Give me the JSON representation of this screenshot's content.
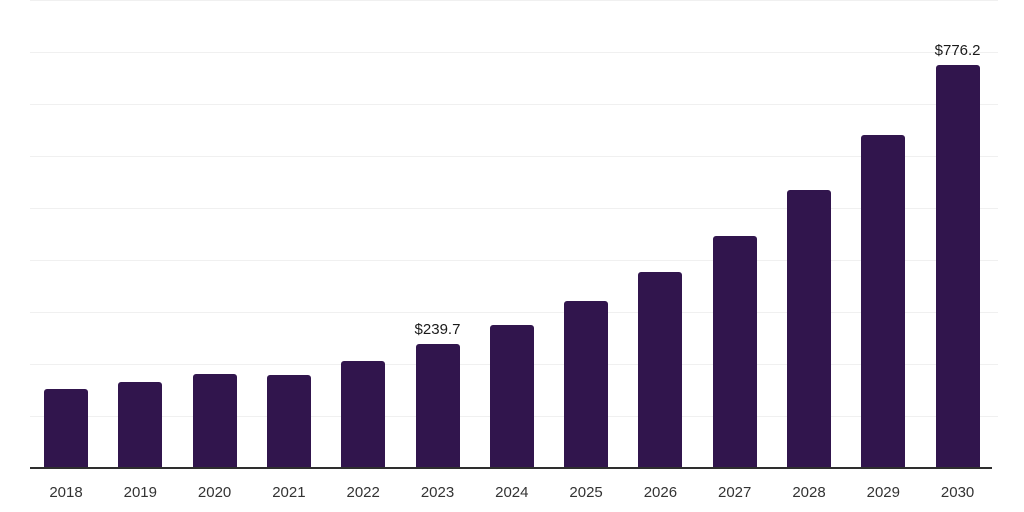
{
  "chart_data": {
    "type": "bar",
    "title": "",
    "xlabel": "",
    "ylabel": "",
    "categories": [
      "2018",
      "2019",
      "2020",
      "2021",
      "2022",
      "2023",
      "2024",
      "2025",
      "2026",
      "2027",
      "2028",
      "2029",
      "2030"
    ],
    "values": [
      154,
      167,
      182,
      180,
      208,
      239.7,
      277,
      323,
      378,
      449,
      536,
      643,
      776.2
    ],
    "value_labels": [
      "",
      "",
      "",
      "",
      "",
      "$239.7",
      "",
      "",
      "",
      "",
      "",
      "",
      "$776.2"
    ],
    "ylim": [
      0,
      900
    ],
    "gridline_step": 100,
    "grid": "horizontal-only",
    "legend": "none",
    "y_axis_tick_labels": "none",
    "colors": {
      "bar": "#31154d",
      "gridline": "#f0f0f0",
      "axis_line": "#2e2e2e",
      "tick_label": "#333333",
      "data_label": "#1a1a1a",
      "background": "#ffffff"
    }
  }
}
